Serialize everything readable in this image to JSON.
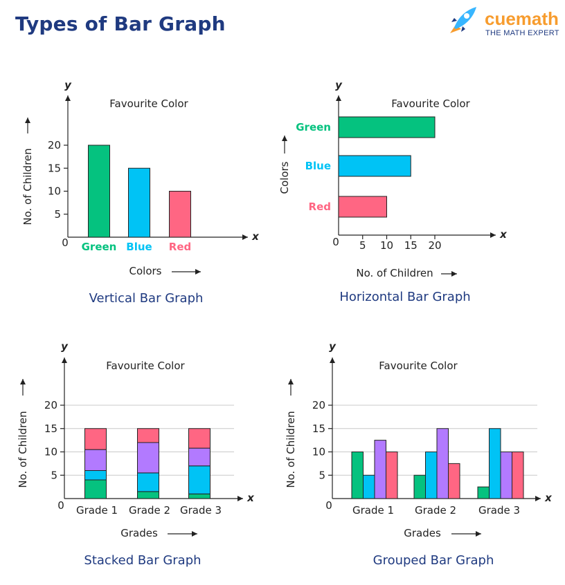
{
  "page": {
    "title": "Types of Bar Graph"
  },
  "brand": {
    "name": "cuemath",
    "tagline": "THE MATH EXPERT",
    "icon": "rocket-icon",
    "accent": "#f79c2e"
  },
  "colors": {
    "Green": "#05c27f",
    "Blue": "#00c3f5",
    "Red": "#ff6683",
    "Purple": "#b27aff",
    "Navy": "#1f3a80"
  },
  "chart_data": [
    {
      "type": "bar",
      "orientation": "vertical",
      "title": "Favourite Color",
      "caption": "Vertical Bar Graph",
      "xlabel": "Colors",
      "ylabel": "No. of Children",
      "x_var": "x",
      "y_var": "y",
      "origin_label": "0",
      "categories": [
        "Green",
        "Blue",
        "Red"
      ],
      "values": [
        20,
        15,
        10
      ],
      "yticks": [
        "5",
        "10",
        "15",
        "20"
      ],
      "ylim": [
        0,
        20
      ],
      "grid": false
    },
    {
      "type": "bar",
      "orientation": "horizontal",
      "title": "Favourite Color",
      "caption": "Horizontal Bar Graph",
      "xlabel": "No. of Children",
      "ylabel": "Colors",
      "x_var": "x",
      "y_var": "y",
      "origin_label": "0",
      "categories": [
        "Green",
        "Blue",
        "Red"
      ],
      "values": [
        20,
        15,
        10
      ],
      "xticks": [
        "5",
        "10",
        "15",
        "20"
      ],
      "xlim": [
        0,
        20
      ],
      "grid": false
    },
    {
      "type": "bar",
      "stacked": true,
      "title": "Favourite Color",
      "caption": "Stacked Bar Graph",
      "xlabel": "Grades",
      "ylabel": "No. of Children",
      "x_var": "x",
      "y_var": "y",
      "origin_label": "0",
      "categories": [
        "Grade 1",
        "Grade 2",
        "Grade 3"
      ],
      "series": [
        {
          "color": "Green",
          "values": [
            4,
            1.5,
            1
          ]
        },
        {
          "color": "Blue",
          "values": [
            2,
            4,
            6
          ]
        },
        {
          "color": "Purple",
          "values": [
            4.5,
            6.5,
            3.8
          ]
        },
        {
          "color": "Red",
          "values": [
            4.5,
            3,
            4.2
          ]
        }
      ],
      "yticks": [
        "5",
        "10",
        "15",
        "20"
      ],
      "ylim": [
        0,
        20
      ],
      "grid": true
    },
    {
      "type": "bar",
      "grouped": true,
      "title": "Favourite Color",
      "caption": "Grouped Bar Graph",
      "xlabel": "Grades",
      "ylabel": "No. of Children",
      "x_var": "x",
      "y_var": "y",
      "origin_label": "0",
      "categories": [
        "Grade 1",
        "Grade 2",
        "Grade 3"
      ],
      "series": [
        {
          "color": "Green",
          "values": [
            10,
            5,
            2.5
          ]
        },
        {
          "color": "Blue",
          "values": [
            5,
            10,
            15
          ]
        },
        {
          "color": "Purple",
          "values": [
            12.5,
            15,
            10
          ]
        },
        {
          "color": "Red",
          "values": [
            10,
            7.5,
            10
          ]
        }
      ],
      "yticks": [
        "5",
        "10",
        "15",
        "20"
      ],
      "ylim": [
        0,
        20
      ],
      "grid": true
    }
  ]
}
